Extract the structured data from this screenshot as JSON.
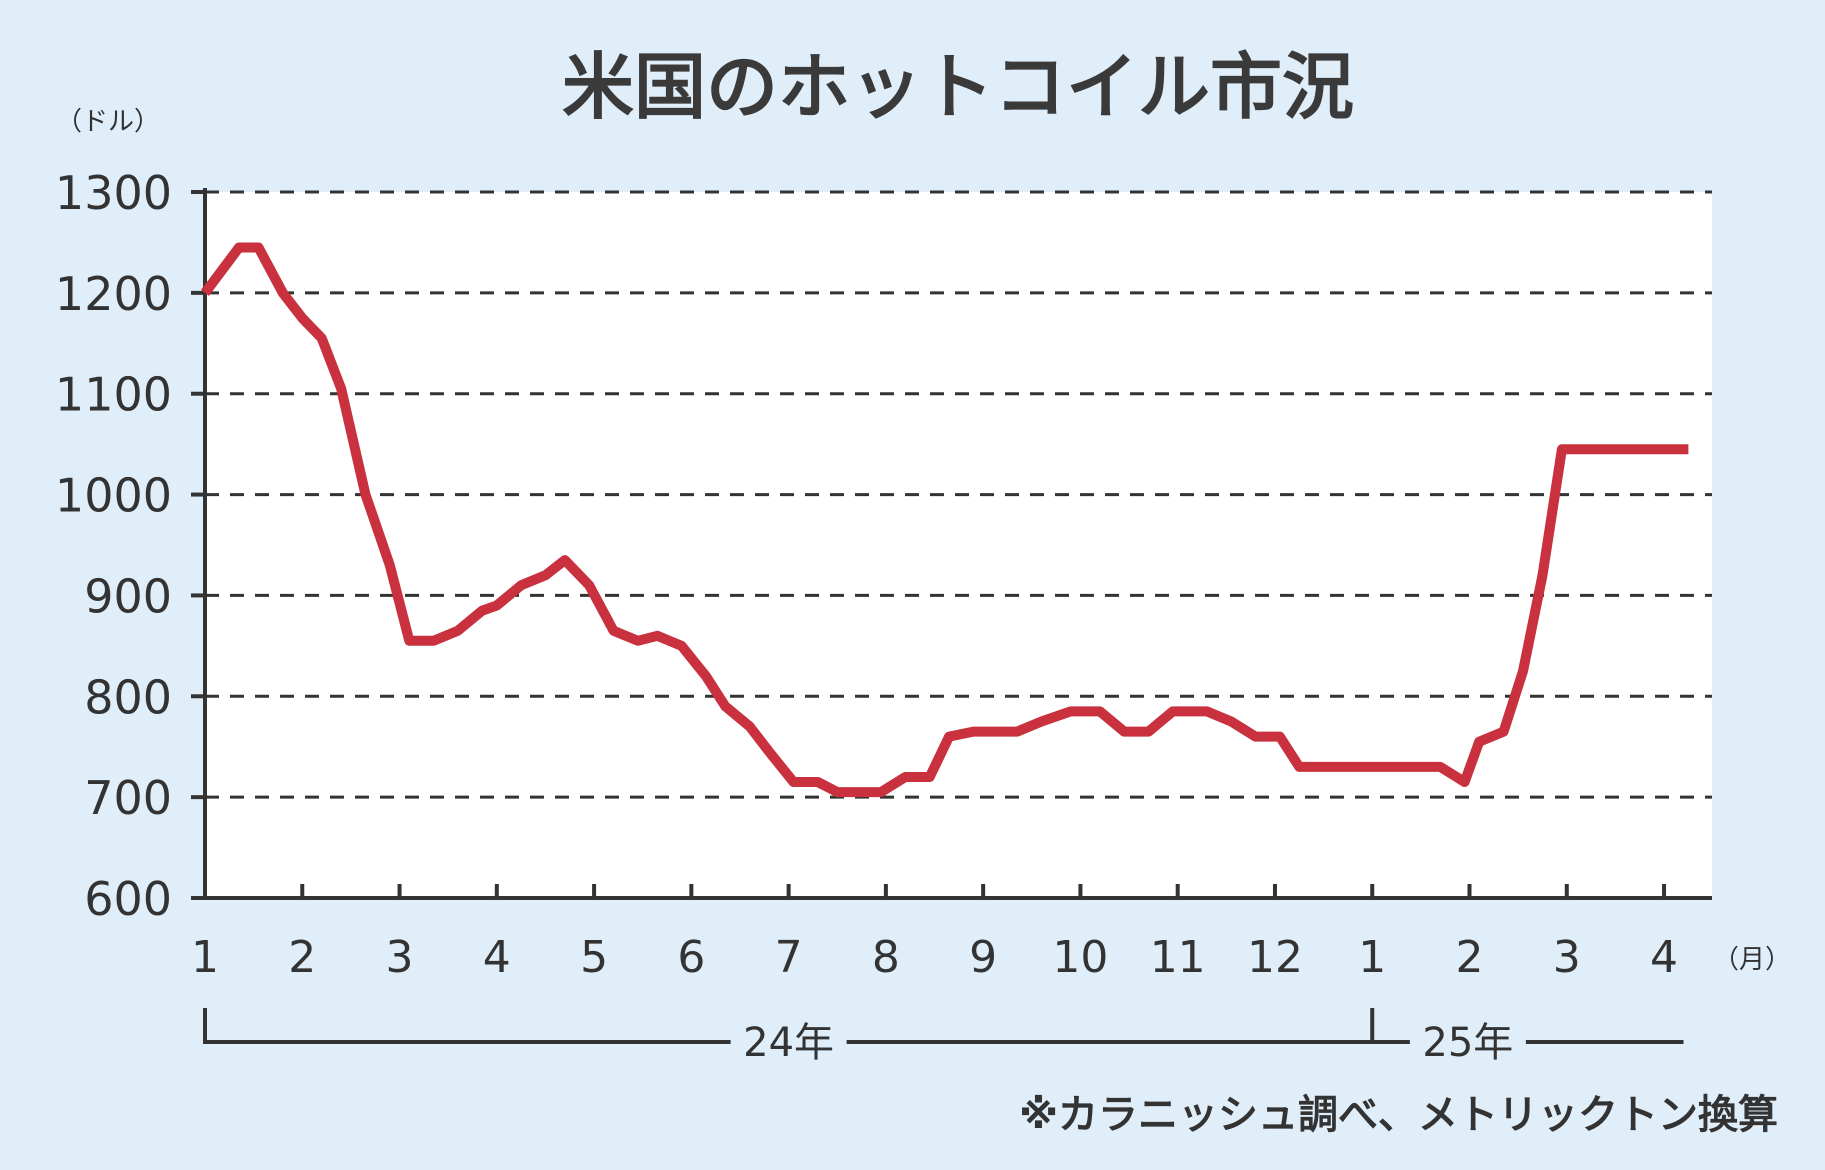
{
  "chart_data": {
    "type": "line",
    "title": "米国のホットコイル市況",
    "y_unit": "（ドル）",
    "x_unit": "（月）",
    "ylim": [
      600,
      1300
    ],
    "y_ticks": [
      "1300",
      "1200",
      "1100",
      "1000",
      "900",
      "800",
      "700",
      "600"
    ],
    "grid": true,
    "x_ticks": [
      "1",
      "2",
      "3",
      "4",
      "5",
      "6",
      "7",
      "8",
      "9",
      "10",
      "11",
      "12",
      "1",
      "2",
      "3",
      "4"
    ],
    "years": [
      {
        "label": "24年",
        "from_month": 1,
        "to_month": 13
      },
      {
        "label": "25年",
        "from_month": 13,
        "to_month": 16.2
      }
    ],
    "note": "※カラニッシュ調べ、メトリックトン換算",
    "line_color": "#c8313d",
    "series": [
      {
        "points": [
          {
            "x": 1.0,
            "y": 1200
          },
          {
            "x": 1.35,
            "y": 1245
          },
          {
            "x": 1.55,
            "y": 1245
          },
          {
            "x": 1.8,
            "y": 1200
          },
          {
            "x": 2.0,
            "y": 1175
          },
          {
            "x": 2.2,
            "y": 1155
          },
          {
            "x": 2.4,
            "y": 1105
          },
          {
            "x": 2.65,
            "y": 1000
          },
          {
            "x": 2.9,
            "y": 930
          },
          {
            "x": 3.1,
            "y": 855
          },
          {
            "x": 3.35,
            "y": 855
          },
          {
            "x": 3.6,
            "y": 865
          },
          {
            "x": 3.85,
            "y": 885
          },
          {
            "x": 4.0,
            "y": 890
          },
          {
            "x": 4.25,
            "y": 910
          },
          {
            "x": 4.5,
            "y": 920
          },
          {
            "x": 4.7,
            "y": 935
          },
          {
            "x": 4.95,
            "y": 910
          },
          {
            "x": 5.2,
            "y": 865
          },
          {
            "x": 5.45,
            "y": 855
          },
          {
            "x": 5.65,
            "y": 860
          },
          {
            "x": 5.9,
            "y": 850
          },
          {
            "x": 6.15,
            "y": 820
          },
          {
            "x": 6.35,
            "y": 790
          },
          {
            "x": 6.6,
            "y": 770
          },
          {
            "x": 6.8,
            "y": 745
          },
          {
            "x": 7.05,
            "y": 715
          },
          {
            "x": 7.3,
            "y": 715
          },
          {
            "x": 7.5,
            "y": 705
          },
          {
            "x": 7.95,
            "y": 705
          },
          {
            "x": 8.2,
            "y": 720
          },
          {
            "x": 8.45,
            "y": 720
          },
          {
            "x": 8.65,
            "y": 760
          },
          {
            "x": 8.9,
            "y": 765
          },
          {
            "x": 9.35,
            "y": 765
          },
          {
            "x": 9.6,
            "y": 775
          },
          {
            "x": 9.9,
            "y": 785
          },
          {
            "x": 10.2,
            "y": 785
          },
          {
            "x": 10.45,
            "y": 765
          },
          {
            "x": 10.7,
            "y": 765
          },
          {
            "x": 10.95,
            "y": 785
          },
          {
            "x": 11.3,
            "y": 785
          },
          {
            "x": 11.55,
            "y": 775
          },
          {
            "x": 11.8,
            "y": 760
          },
          {
            "x": 12.05,
            "y": 760
          },
          {
            "x": 12.25,
            "y": 730
          },
          {
            "x": 13.0,
            "y": 730
          },
          {
            "x": 13.7,
            "y": 730
          },
          {
            "x": 13.95,
            "y": 715
          },
          {
            "x": 14.1,
            "y": 755
          },
          {
            "x": 14.35,
            "y": 765
          },
          {
            "x": 14.55,
            "y": 825
          },
          {
            "x": 14.75,
            "y": 920
          },
          {
            "x": 14.95,
            "y": 1045
          },
          {
            "x": 16.25,
            "y": 1045
          }
        ]
      }
    ]
  }
}
